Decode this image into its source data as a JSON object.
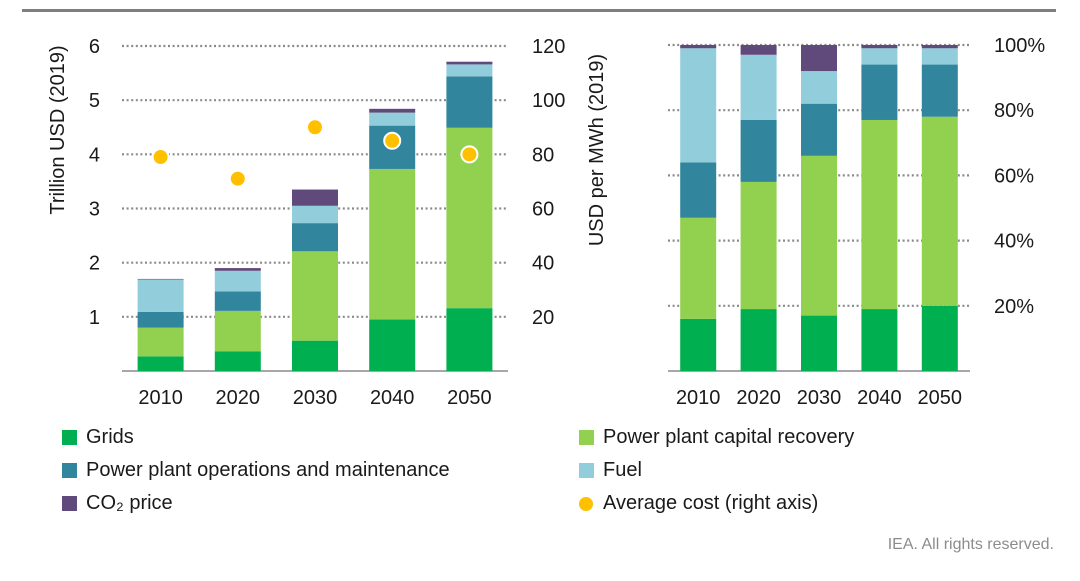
{
  "colors": {
    "grids": "#00b050",
    "capital": "#92d050",
    "om": "#31859c",
    "fuel": "#92cddc",
    "co2": "#604a7b",
    "avg": "#ffc000"
  },
  "chart_data": [
    {
      "type": "bar",
      "stacked": true,
      "title": "",
      "categories": [
        "2010",
        "2020",
        "2030",
        "2040",
        "2050"
      ],
      "ylabel": "Trillion USD (2019)",
      "ylim": [
        0,
        6
      ],
      "yticks": [
        "1",
        "2",
        "3",
        "4",
        "5",
        "6"
      ],
      "y2label": "USD per MWh (2019)",
      "y2lim": [
        0,
        120
      ],
      "y2ticks": [
        "20",
        "40",
        "60",
        "80",
        "100",
        "120"
      ],
      "series": [
        {
          "name": "Grids",
          "key": "grids",
          "values": [
            0.27,
            0.36,
            0.56,
            0.95,
            1.16
          ]
        },
        {
          "name": "Power plant capital recovery",
          "key": "capital",
          "values": [
            0.53,
            0.75,
            1.65,
            2.78,
            3.33
          ]
        },
        {
          "name": "Power plant operations and maintenance",
          "key": "om",
          "values": [
            0.29,
            0.36,
            0.52,
            0.8,
            0.95
          ]
        },
        {
          "name": "Fuel",
          "key": "fuel",
          "values": [
            0.6,
            0.38,
            0.32,
            0.24,
            0.22
          ]
        },
        {
          "name": "CO₂ price",
          "key": "co2",
          "values": [
            0.01,
            0.05,
            0.3,
            0.07,
            0.05
          ]
        }
      ],
      "line_series": {
        "name": "Average cost (right axis)",
        "key": "avg",
        "values": [
          79,
          71,
          90,
          85,
          80
        ]
      }
    },
    {
      "type": "bar",
      "stacked": true,
      "percent": true,
      "categories": [
        "2010",
        "2020",
        "2030",
        "2040",
        "2050"
      ],
      "ylim": [
        0,
        100
      ],
      "yticks": [
        "20%",
        "40%",
        "60%",
        "80%",
        "100%"
      ],
      "series": [
        {
          "name": "Grids",
          "key": "grids",
          "values": [
            16,
            19,
            17,
            19,
            20
          ]
        },
        {
          "name": "Power plant capital recovery",
          "key": "capital",
          "values": [
            31,
            39,
            49,
            58,
            58
          ]
        },
        {
          "name": "Power plant operations and maintenance",
          "key": "om",
          "values": [
            17,
            19,
            16,
            17,
            16
          ]
        },
        {
          "name": "Fuel",
          "key": "fuel",
          "values": [
            35,
            20,
            10,
            5,
            5
          ]
        },
        {
          "name": "CO₂ price",
          "key": "co2",
          "values": [
            1,
            3,
            8,
            1,
            1
          ]
        }
      ]
    }
  ],
  "legend": [
    {
      "key": "grids",
      "label": "Grids",
      "shape": "square"
    },
    {
      "key": "capital",
      "label": "Power plant capital recovery",
      "shape": "square"
    },
    {
      "key": "om",
      "label": "Power plant operations and maintenance",
      "shape": "square"
    },
    {
      "key": "fuel",
      "label": "Fuel",
      "shape": "square"
    },
    {
      "key": "co2",
      "label": "CO₂ price",
      "shape": "square"
    },
    {
      "key": "avg",
      "label": "Average cost (right axis)",
      "shape": "circle"
    }
  ],
  "credit": "IEA. All rights reserved."
}
